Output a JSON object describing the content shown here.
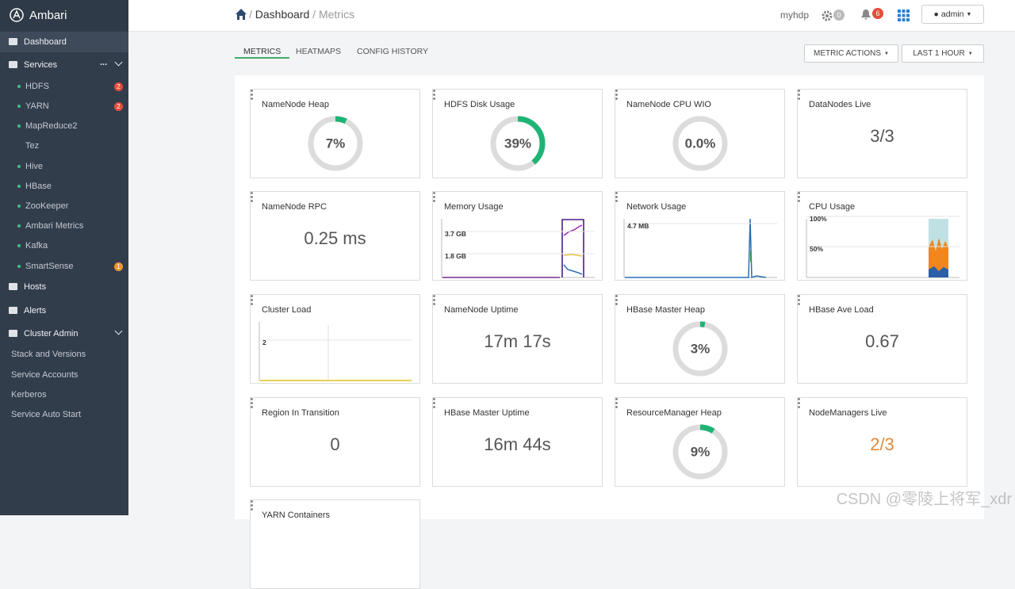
{
  "sidebar": {
    "brand": "Ambari",
    "items": [
      {
        "label": "Dashboard",
        "active": true
      },
      {
        "label": "Services",
        "more": "..."
      },
      {
        "label": "HDFS",
        "sub": true,
        "badge": "2",
        "badge_color": "#e74c3c"
      },
      {
        "label": "YARN",
        "sub": true,
        "badge": "2",
        "badge_color": "#e74c3c"
      },
      {
        "label": "MapReduce2",
        "sub": true
      },
      {
        "label": "Tez",
        "sub": true,
        "nodot": true
      },
      {
        "label": "Hive",
        "sub": true
      },
      {
        "label": "HBase",
        "sub": true
      },
      {
        "label": "ZooKeeper",
        "sub": true
      },
      {
        "label": "Ambari Metrics",
        "sub": true
      },
      {
        "label": "Kafka",
        "sub": true
      },
      {
        "label": "SmartSense",
        "sub": true,
        "badge": "1",
        "badge_color": "#f0962e"
      },
      {
        "label": "Hosts"
      },
      {
        "label": "Alerts"
      },
      {
        "label": "Cluster Admin"
      },
      {
        "label": "Stack and Versions",
        "plain": true
      },
      {
        "label": "Service Accounts",
        "plain": true
      },
      {
        "label": "Kerberos",
        "plain": true
      },
      {
        "label": "Service Auto Start",
        "plain": true
      }
    ]
  },
  "header": {
    "breadcrumb": [
      "Dashboard",
      "Metrics"
    ],
    "cluster": "myhdp",
    "ops_badge": "0",
    "alerts_badge": "6",
    "user": "admin"
  },
  "tabs": [
    "METRICS",
    "HEATMAPS",
    "CONFIG HISTORY"
  ],
  "buttons": [
    "METRIC ACTIONS",
    "LAST 1 HOUR"
  ],
  "widgets": [
    {
      "title": "NameNode Heap",
      "type": "gauge",
      "value": 7,
      "label": "7%"
    },
    {
      "title": "HDFS Disk Usage",
      "type": "gauge",
      "value": 39,
      "label": "39%"
    },
    {
      "title": "NameNode CPU WIO",
      "type": "gauge",
      "value": 0,
      "label": "0.0%"
    },
    {
      "title": "DataNodes Live",
      "type": "text",
      "label": "3/3"
    },
    {
      "title": "NameNode RPC",
      "type": "text",
      "label": "0.25 ms"
    },
    {
      "title": "Memory Usage",
      "type": "chart",
      "axis": [
        "3.7 GB",
        "1.8 GB"
      ]
    },
    {
      "title": "Network Usage",
      "type": "chart",
      "axis": [
        "4.7 MB"
      ]
    },
    {
      "title": "CPU Usage",
      "type": "chart",
      "axis": [
        "100%",
        "50%"
      ]
    },
    {
      "title": "Cluster Load",
      "type": "chart",
      "axis": [
        "2"
      ]
    },
    {
      "title": "NameNode Uptime",
      "type": "text",
      "label": "17m 17s"
    },
    {
      "title": "HBase Master Heap",
      "type": "gauge",
      "value": 3,
      "label": "3%"
    },
    {
      "title": "HBase Ave Load",
      "type": "text",
      "label": "0.67"
    },
    {
      "title": "Region In Transition",
      "type": "text",
      "label": "0"
    },
    {
      "title": "HBase Master Uptime",
      "type": "text",
      "label": "16m 44s"
    },
    {
      "title": "ResourceManager Heap",
      "type": "gauge",
      "value": 9,
      "label": "9%"
    },
    {
      "title": "NodeManagers Live",
      "type": "text",
      "label": "2/3",
      "color": "#e08a3c"
    },
    {
      "title": "YARN Containers",
      "type": "text"
    }
  ],
  "watermark": "CSDN @零陵上将军_xdr"
}
